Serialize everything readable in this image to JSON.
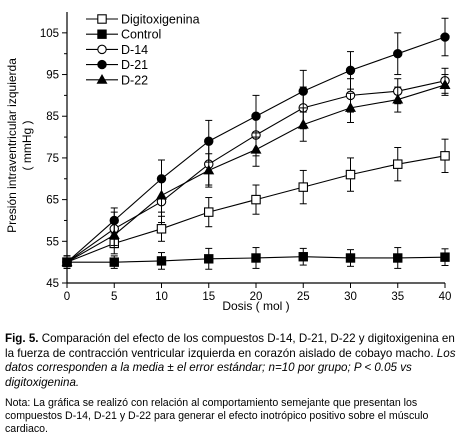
{
  "chart_data": {
    "type": "line",
    "xlabel": "Dosis (   mol )",
    "ylabel_line1": "Presión intraventricular izquierda",
    "ylabel_line2": "( mmHg )",
    "xlim": [
      0,
      40
    ],
    "ylim": [
      45,
      110
    ],
    "xticks": [
      0,
      5,
      10,
      15,
      20,
      25,
      30,
      35,
      40
    ],
    "yticks": [
      45,
      55,
      65,
      75,
      85,
      95,
      105
    ],
    "x": [
      0,
      5,
      10,
      15,
      20,
      25,
      30,
      35,
      40
    ],
    "legend_position": "top-left",
    "series": [
      {
        "name": "Digitoxigenina",
        "marker": "open-square",
        "values": [
          50,
          54.5,
          58,
          62,
          65,
          68,
          71,
          73.5,
          75.5
        ],
        "errors": [
          1.5,
          2.5,
          3,
          3.5,
          3.5,
          4,
          4,
          4,
          4
        ]
      },
      {
        "name": "Control",
        "marker": "filled-square",
        "values": [
          50,
          50,
          50.3,
          50.8,
          51,
          51.3,
          51,
          51,
          51.2
        ],
        "errors": [
          1.5,
          1.5,
          2,
          2.5,
          2.5,
          2,
          2,
          2.5,
          2
        ]
      },
      {
        "name": "D-14",
        "marker": "open-circle",
        "values": [
          50,
          58,
          64.5,
          73.5,
          80.5,
          87,
          90,
          91,
          93.5
        ],
        "errors": [
          1.5,
          4,
          5,
          5,
          5,
          5,
          4,
          3,
          3
        ]
      },
      {
        "name": "D-21",
        "marker": "filled-circle",
        "values": [
          50,
          60,
          70,
          79,
          85,
          91,
          96,
          100,
          104
        ],
        "errors": [
          1.5,
          3,
          4.5,
          5,
          5,
          5,
          4.5,
          5,
          4.5
        ]
      },
      {
        "name": "D-22",
        "marker": "filled-triangle",
        "values": [
          50,
          56.5,
          66,
          72,
          77,
          83,
          87,
          89,
          92.5
        ],
        "errors": [
          1.5,
          3,
          4,
          4,
          4,
          4,
          3.5,
          3,
          2.5
        ]
      }
    ]
  },
  "caption": {
    "fig_label": "Fig. 5.",
    "text": " Comparación del efecto de los compuestos D-14, D-21, D-22 y digitoxigenina en la fuerza de contracción ventricular izquierda en corazón aislado de cobayo macho. ",
    "italic": "Los datos corresponden a la media ± el error estándar; n=10 por grupo; P < 0.05 vs digitoxigenina."
  },
  "note": "Nota: La gráfica se realizó con relación al comportamiento semejante que presentan los compuestos D-14, D-21 y D-22 para generar el efecto inotrópico positivo sobre el músculo cardiaco."
}
